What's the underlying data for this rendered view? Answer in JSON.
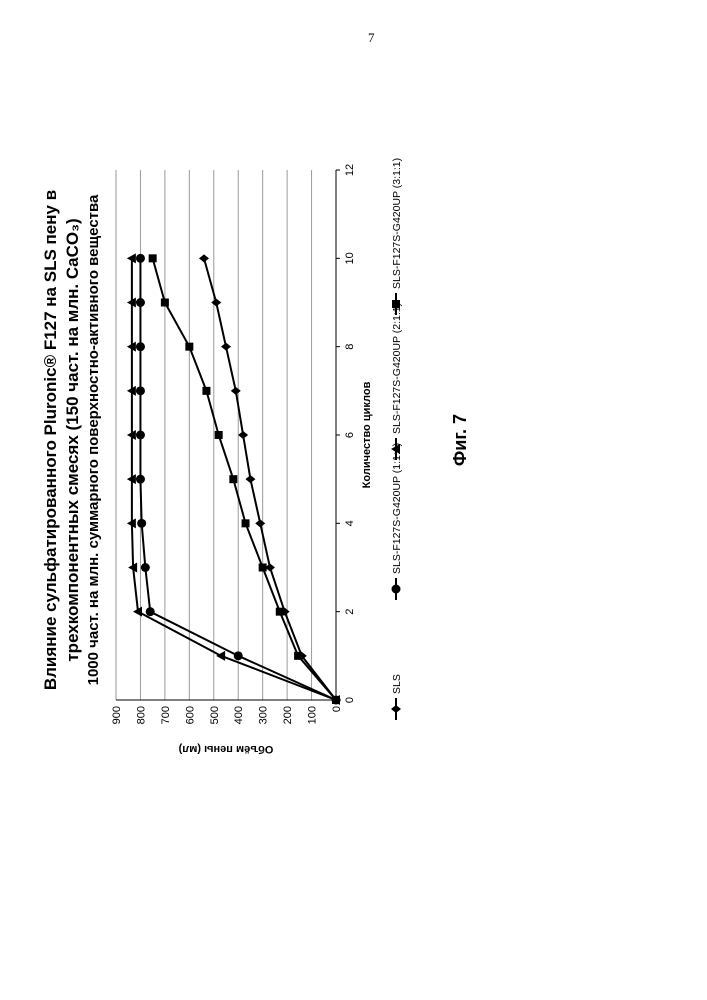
{
  "page_number": "7",
  "title_lines": [
    "Влияние сульфатированного Pluronic® F127 на SLS пену в",
    "трехкомпонентных смесях (150 част. на млн. CaCO₃)",
    "1000 част. на млн. суммарного поверхностно-активного вещества"
  ],
  "figure_label": "Фиг. 7",
  "chart_data": {
    "type": "line",
    "title": "Влияние сульфатированного Pluronic® F127 на SLS пену в трехкомпонентных смесях (150 част. на млн. CaCO₃) 1000 част. на млн. суммарного поверхностно-активного вещества",
    "xlabel": "Количество циклов",
    "ylabel": "Объём пены (мл)",
    "xlim": [
      0,
      12
    ],
    "ylim": [
      0,
      900
    ],
    "x_ticks": [
      0,
      2,
      4,
      6,
      8,
      10,
      12
    ],
    "y_ticks": [
      0,
      100,
      200,
      300,
      400,
      500,
      600,
      700,
      800,
      900
    ],
    "grid": "horizontal",
    "legend_position": "bottom",
    "series": [
      {
        "name": "SLS",
        "marker": "diamond",
        "x": [
          0,
          1,
          2,
          3,
          4,
          5,
          6,
          7,
          8,
          9,
          10
        ],
        "values": [
          0,
          140,
          210,
          270,
          310,
          350,
          380,
          410,
          450,
          490,
          540
        ]
      },
      {
        "name": "SLS-F127S-G420UP (1:1:1)",
        "marker": "circle",
        "x": [
          0,
          1,
          2,
          3,
          4,
          5,
          6,
          7,
          8,
          9,
          10
        ],
        "values": [
          0,
          400,
          760,
          780,
          795,
          800,
          800,
          800,
          800,
          800,
          800
        ]
      },
      {
        "name": "SLS-F127S-G420UP (2:1:1)",
        "marker": "triangle",
        "x": [
          0,
          1,
          2,
          3,
          4,
          5,
          6,
          7,
          8,
          9,
          10
        ],
        "values": [
          0,
          470,
          810,
          830,
          835,
          835,
          835,
          835,
          835,
          835,
          835
        ]
      },
      {
        "name": "SLS-F127S-G420UP (3:1:1)",
        "marker": "square",
        "x": [
          0,
          1,
          2,
          3,
          4,
          5,
          6,
          7,
          8,
          9,
          10
        ],
        "values": [
          0,
          155,
          230,
          300,
          370,
          420,
          480,
          530,
          600,
          700,
          750
        ]
      }
    ]
  }
}
